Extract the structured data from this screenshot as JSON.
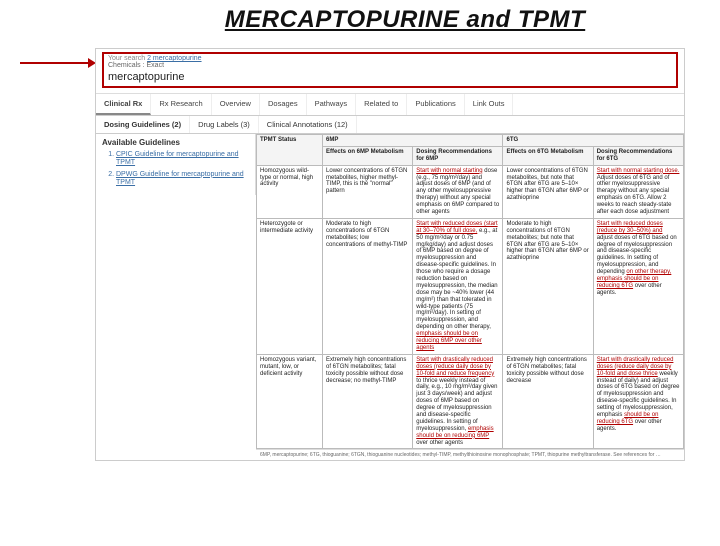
{
  "title": "MERCAPTOPURINE and TPMT",
  "search": {
    "line1_prefix": "Your search",
    "line1_link": "2 mercaptopurine",
    "line2": "Chemicals : Exact",
    "chemical": "mercaptopurine"
  },
  "tabs": [
    "Clinical Rx",
    "Rx Research",
    "Overview",
    "Dosages",
    "Pathways",
    "Related to",
    "Publications",
    "Link Outs"
  ],
  "subtabs": [
    "Dosing Guidelines (2)",
    "Drug Labels (3)",
    "Clinical Annotations (12)"
  ],
  "guidelines_title": "Available Guidelines",
  "guidelines": [
    "CPIC Guideline for mercaptopurine and TPMT",
    "DPWG Guideline for mercaptopurine and TPMT"
  ],
  "table": {
    "headers": [
      "TPMT Status",
      "6MP",
      "",
      "6TG",
      ""
    ],
    "subheaders": [
      "",
      "Effects on 6MP Metabolism",
      "Dosing Recommendations for 6MP",
      "Effects on 6TG Metabolism",
      "Dosing Recommendations for 6TG"
    ],
    "rows": [
      {
        "tpmt": "Homozygous wild-type or normal, high activity",
        "eff6mp": "Lower concentrations of 6TGN metabolites, higher methyl-TIMP, this is the \"normal\" pattern",
        "rec6mp_r": "Start with normal starting",
        "rec6mp": " dose (e.g., 75 mg/m²/day) and adjust doses of 6MP (and of any other myelosuppressive therapy) without any special emphasis on 6MP compared to other agents",
        "eff6tg": "Lower concentrations of 6TGN metabolites, but note that 6TGN after 6TG are 5–10× higher than 6TGN after 6MP or azathioprine",
        "rec6tg_r": "Start with normal starting dose.",
        "rec6tg": " Adjust doses of 6TG and of other myelosuppressive therapy without any special emphasis on 6TG. Allow 2 weeks to reach steady-state after each dose adjustment"
      },
      {
        "tpmt": "Heterozygote or intermediate activity",
        "eff6mp": "Moderate to high concentrations of 6TGN metabolites; low concentrations of methyl-TIMP",
        "rec6mp_r": "Start with reduced doses (start at 30–70% of full dose,",
        "rec6mp": " e.g., at 50 mg/m²/day or 0.75 mg/kg/day) and adjust doses of 6MP based on degree of myelosuppression and disease-specific guidelines. In those who require a dosage reduction based on myelosuppression, the median dose may be ~40% lower (44 mg/m²) than that tolerated in wild-type patients (75 mg/m²/day). In setting of myelosuppression, and depending on other therapy, ",
        "rec6mp_r2": "emphasis should be on reducing 6MP over other agents",
        "eff6tg": "Moderate to high concentrations of 6TGN metabolites; but note that 6TGN after 6TG are 5–10× higher than 6TGN after 6MP or azathioprine",
        "rec6tg_r": "Start with reduced doses (reduce by 30–50%) and",
        "rec6tg": " adjust doses of 6TG based on degree of myelosuppression and disease-specific guidelines. In setting of myelosuppression, and depending ",
        "rec6tg_r2": "on other therapy, emphasis should be on reducing 6TG",
        "rec6tg_tail": " over other agents."
      },
      {
        "tpmt": "Homozygous variant, mutant, low, or deficient activity",
        "eff6mp": "Extremely high concentrations of 6TGN metabolites; fatal toxicity possible without dose decrease; no methyl-TIMP",
        "rec6mp_r": "Start with drastically reduced doses (reduce daily dose by 10-fold and reduce frequency",
        "rec6mp": " to thrice weekly instead of daily, e.g., 10 mg/m²/day given just 3 days/week) and adjust doses of 6MP based on degree of myelosuppression and disease-specific guidelines. In setting of myelosuppression, ",
        "rec6mp_r2": "emphasis should be on reducing 6MP",
        "rec6mp_tail": " over other agents",
        "eff6tg": "Extremely high concentrations of 6TGN metabolites; fatal toxicity possible without dose decrease",
        "rec6tg_r": "Start with drastically reduced doses (reduce daily dose by 10-fold and dose thrice",
        "rec6tg": " weekly instead of daily) and adjust doses of 6TG based on degree of myelosuppression and disease-specific guidelines. In setting of myelosuppression, emphasis ",
        "rec6tg_r2": "should be on reducing 6TG",
        "rec6tg_tail": " over other agents."
      }
    ],
    "footnote": "6MP, mercaptopurine; 6TG, thioguanine; 6TGN, thioguanine nucleotides; methyl-TIMP, methylthioinosine monophosphate; TPMT, thiopurine methyltransferase. See references for …"
  },
  "colors": {
    "red": "#b00000",
    "link": "#3a6ea5",
    "border": "#cccccc"
  }
}
